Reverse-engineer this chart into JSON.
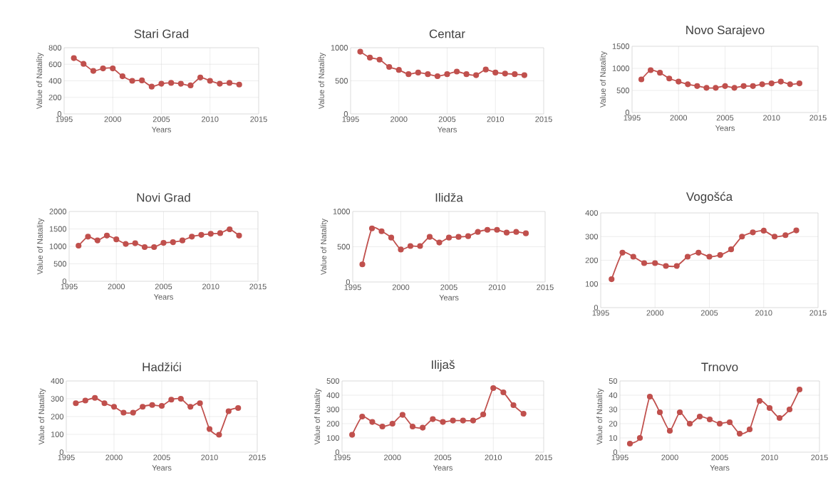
{
  "chart_data": [
    {
      "type": "line",
      "title": "Stari Grad",
      "xlabel": "Years",
      "ylabel": "Value of Natality",
      "x": [
        1996,
        1997,
        1998,
        1999,
        2000,
        2001,
        2002,
        2003,
        2004,
        2005,
        2006,
        2007,
        2008,
        2009,
        2010,
        2011,
        2012,
        2013
      ],
      "series": [
        {
          "color": "#c0504d",
          "values": [
            675,
            605,
            520,
            550,
            550,
            455,
            400,
            405,
            330,
            365,
            375,
            365,
            345,
            440,
            400,
            365,
            375,
            355
          ]
        }
      ],
      "xlim": [
        1995,
        2015
      ],
      "xticks": [
        1995,
        2000,
        2005,
        2010,
        2015
      ],
      "ylim": [
        0,
        800
      ],
      "yticks": [
        0,
        200,
        400,
        600,
        800
      ],
      "grid": true,
      "marker": "circle"
    },
    {
      "type": "line",
      "title": "Centar",
      "xlabel": "Years",
      "ylabel": "Value of Natality",
      "x": [
        1996,
        1997,
        1998,
        1999,
        2000,
        2001,
        2002,
        2003,
        2004,
        2005,
        2006,
        2007,
        2008,
        2009,
        2010,
        2011,
        2012,
        2013
      ],
      "series": [
        {
          "color": "#c0504d",
          "values": [
            940,
            850,
            820,
            710,
            665,
            600,
            625,
            600,
            570,
            600,
            640,
            600,
            585,
            670,
            625,
            610,
            600,
            585
          ]
        }
      ],
      "xlim": [
        1995,
        2015
      ],
      "xticks": [
        1995,
        2000,
        2005,
        2010,
        2015
      ],
      "ylim": [
        0,
        1000
      ],
      "yticks": [
        0,
        500,
        1000
      ],
      "grid": true,
      "marker": "circle"
    },
    {
      "type": "line",
      "title": "Novo Sarajevo",
      "xlabel": "Years",
      "ylabel": "Value of Natality",
      "x": [
        1996,
        1997,
        1998,
        1999,
        2000,
        2001,
        2002,
        2003,
        2004,
        2005,
        2006,
        2007,
        2008,
        2009,
        2010,
        2011,
        2012,
        2013
      ],
      "series": [
        {
          "color": "#c0504d",
          "values": [
            750,
            960,
            900,
            770,
            700,
            640,
            600,
            560,
            560,
            600,
            560,
            600,
            600,
            640,
            660,
            700,
            640,
            660
          ]
        }
      ],
      "xlim": [
        1995,
        2015
      ],
      "xticks": [
        1995,
        2000,
        2005,
        2010,
        2015
      ],
      "ylim": [
        0,
        1500
      ],
      "yticks": [
        0,
        500,
        1000,
        1500
      ],
      "grid": true,
      "marker": "circle"
    },
    {
      "type": "line",
      "title": "Novi Grad",
      "xlabel": "Years",
      "ylabel": "Value of Natality",
      "x": [
        1996,
        1997,
        1998,
        1999,
        2000,
        2001,
        2002,
        2003,
        2004,
        2005,
        2006,
        2007,
        2008,
        2009,
        2010,
        2011,
        2012,
        2013
      ],
      "series": [
        {
          "color": "#c0504d",
          "values": [
            1020,
            1280,
            1170,
            1310,
            1200,
            1070,
            1090,
            980,
            980,
            1100,
            1120,
            1170,
            1280,
            1330,
            1360,
            1380,
            1490,
            1310
          ]
        }
      ],
      "xlim": [
        1995,
        2015
      ],
      "xticks": [
        1995,
        2000,
        2005,
        2010,
        2015
      ],
      "ylim": [
        0,
        2000
      ],
      "yticks": [
        0,
        500,
        1000,
        1500,
        2000
      ],
      "grid": true,
      "marker": "circle"
    },
    {
      "type": "line",
      "title": "Ilidža",
      "xlabel": "Years",
      "ylabel": "Value of Natality",
      "x": [
        1996,
        1997,
        1998,
        1999,
        2000,
        2001,
        2002,
        2003,
        2004,
        2005,
        2006,
        2007,
        2008,
        2009,
        2010,
        2011,
        2012,
        2013
      ],
      "series": [
        {
          "color": "#c0504d",
          "values": [
            250,
            760,
            720,
            630,
            460,
            510,
            510,
            640,
            560,
            630,
            640,
            650,
            710,
            740,
            740,
            700,
            710,
            690
          ]
        }
      ],
      "xlim": [
        1995,
        2015
      ],
      "xticks": [
        1995,
        2000,
        2005,
        2010,
        2015
      ],
      "ylim": [
        0,
        1000
      ],
      "yticks": [
        0,
        500,
        1000
      ],
      "grid": true,
      "marker": "circle"
    },
    {
      "type": "line",
      "title": "Vogošća",
      "x": [
        1996,
        1997,
        1998,
        1999,
        2000,
        2001,
        2002,
        2003,
        2004,
        2005,
        2006,
        2007,
        2008,
        2009,
        2010,
        2011,
        2012,
        2013
      ],
      "series": [
        {
          "color": "#c0504d",
          "values": [
            120,
            232,
            215,
            188,
            188,
            176,
            176,
            215,
            232,
            215,
            222,
            246,
            300,
            318,
            325,
            300,
            306,
            326
          ]
        }
      ],
      "xlim": [
        1995,
        2015
      ],
      "xticks": [
        1995,
        2000,
        2005,
        2010,
        2015
      ],
      "ylim": [
        0,
        400
      ],
      "yticks": [
        0,
        100,
        200,
        300,
        400
      ],
      "grid": true,
      "marker": "circle"
    },
    {
      "type": "line",
      "title": "Hadžići",
      "xlabel": "Years",
      "ylabel": "Value of Natality",
      "x": [
        1996,
        1997,
        1998,
        1999,
        2000,
        2001,
        2002,
        2003,
        2004,
        2005,
        2006,
        2007,
        2008,
        2009,
        2010,
        2011,
        2012,
        2013
      ],
      "series": [
        {
          "color": "#c0504d",
          "values": [
            275,
            290,
            305,
            275,
            255,
            222,
            222,
            255,
            265,
            260,
            295,
            300,
            255,
            275,
            130,
            98,
            230,
            248
          ]
        }
      ],
      "xlim": [
        1995,
        2015
      ],
      "xticks": [
        1995,
        2000,
        2005,
        2010,
        2015
      ],
      "ylim": [
        0,
        400
      ],
      "yticks": [
        0,
        100,
        200,
        300,
        400
      ],
      "grid": true,
      "marker": "circle"
    },
    {
      "type": "line",
      "title": "Ilijaš",
      "xlabel": "Years",
      "ylabel": "Value of Natality",
      "x": [
        1996,
        1997,
        1998,
        1999,
        2000,
        2001,
        2002,
        2003,
        2004,
        2005,
        2006,
        2007,
        2008,
        2009,
        2010,
        2011,
        2012,
        2013
      ],
      "series": [
        {
          "color": "#c0504d",
          "values": [
            122,
            250,
            212,
            180,
            200,
            262,
            180,
            172,
            232,
            212,
            222,
            222,
            222,
            265,
            450,
            420,
            330,
            270
          ]
        }
      ],
      "xlim": [
        1995,
        2015
      ],
      "xticks": [
        1995,
        2000,
        2005,
        2010,
        2015
      ],
      "ylim": [
        0,
        500
      ],
      "yticks": [
        0,
        100,
        200,
        300,
        400,
        500
      ],
      "grid": true,
      "marker": "circle"
    },
    {
      "type": "line",
      "title": "Trnovo",
      "xlabel": "Years",
      "ylabel": "Value of Natality",
      "x": [
        1996,
        1997,
        1998,
        1999,
        2000,
        2001,
        2002,
        2003,
        2004,
        2005,
        2006,
        2007,
        2008,
        2009,
        2010,
        2011,
        2012,
        2013
      ],
      "series": [
        {
          "color": "#c0504d",
          "values": [
            6,
            10,
            39,
            28,
            15,
            28,
            20,
            25,
            23,
            20,
            21,
            13,
            16,
            36,
            31,
            24,
            30,
            44
          ]
        }
      ],
      "xlim": [
        1995,
        2015
      ],
      "xticks": [
        1995,
        2000,
        2005,
        2010,
        2015
      ],
      "ylim": [
        0,
        50
      ],
      "yticks": [
        0,
        10,
        20,
        30,
        40,
        50
      ],
      "grid": true,
      "marker": "circle"
    }
  ]
}
